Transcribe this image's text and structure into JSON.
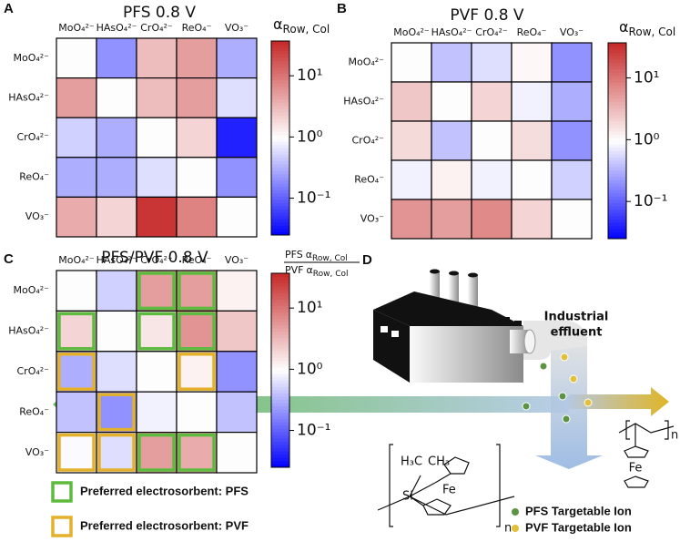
{
  "chart_data": [
    {
      "type": "heatmap",
      "panel": "A",
      "title": "PFS 0.8 V",
      "rows": [
        "MoO₄²⁻",
        "HAsO₄²⁻",
        "CrO₄²⁻",
        "ReO₄⁻",
        "VO₃⁻"
      ],
      "columns": [
        "MoO₄²⁻",
        "HAsO₄²⁻",
        "CrO₄²⁻",
        "ReO₄⁻",
        "VO₃⁻"
      ],
      "values": [
        [
          1,
          0.2,
          3,
          5,
          0.3
        ],
        [
          5,
          1,
          3,
          5,
          0.6
        ],
        [
          0.5,
          0.3,
          1,
          2,
          0.04
        ],
        [
          0.3,
          0.3,
          0.6,
          1,
          0.2
        ],
        [
          4,
          2,
          30,
          8,
          1
        ]
      ],
      "colorbar_label": [
        {
          "symbol": "α",
          "subscript": "Row, Col"
        }
      ],
      "scale": "log",
      "zlim": [
        0.025,
        37
      ],
      "zticks": [
        {
          "value": 10,
          "label": "10¹"
        },
        {
          "value": 1,
          "label": "10⁰"
        },
        {
          "value": 0.1,
          "label": "10⁻¹"
        }
      ],
      "colormap": [
        "#0000ff",
        "#ffffff",
        "#c62828"
      ]
    },
    {
      "type": "heatmap",
      "panel": "B",
      "title": "PVF 0.8 V",
      "rows": [
        "MoO₄²⁻",
        "HAsO₄²⁻",
        "CrO₄²⁻",
        "ReO₄⁻",
        "VO₃⁻"
      ],
      "columns": [
        "MoO₄²⁻",
        "HAsO₄²⁻",
        "CrO₄²⁻",
        "ReO₄⁻",
        "VO₃⁻"
      ],
      "values": [
        [
          1,
          0.4,
          0.6,
          1.1,
          0.2
        ],
        [
          2.5,
          1,
          2,
          0.8,
          0.3
        ],
        [
          1.8,
          0.4,
          1,
          1.7,
          0.2
        ],
        [
          0.8,
          1.2,
          0.8,
          1,
          0.5
        ],
        [
          6,
          5,
          7,
          2,
          1
        ]
      ],
      "colorbar_label": [
        {
          "symbol": "α",
          "subscript": "Row, Col"
        }
      ],
      "scale": "log",
      "zlim": [
        0.025,
        37
      ],
      "zticks": [
        {
          "value": 10,
          "label": "10¹"
        },
        {
          "value": 1,
          "label": "10⁰"
        },
        {
          "value": 0.1,
          "label": "10⁻¹"
        }
      ],
      "colormap": [
        "#0000ff",
        "#ffffff",
        "#c62828"
      ]
    },
    {
      "type": "heatmap",
      "panel": "C",
      "title": "PFS/PVF 0.8 V",
      "rows": [
        "MoO₄²⁻",
        "HAsO₄²⁻",
        "CrO₄²⁻",
        "ReO₄⁻",
        "VO₃⁻"
      ],
      "columns": [
        "MoO₄²⁻",
        "HAsO₄²⁻",
        "CrO₄²⁻",
        "ReO₄⁻",
        "VO₃⁻"
      ],
      "values": [
        [
          1,
          0.5,
          5,
          5,
          1.2
        ],
        [
          2,
          1,
          1.5,
          6,
          2.5
        ],
        [
          0.3,
          0.6,
          1,
          1.2,
          0.2
        ],
        [
          0.4,
          0.2,
          0.8,
          1,
          0.4
        ],
        [
          0.9,
          0.6,
          5,
          4,
          1
        ]
      ],
      "colorbar_label": [
        {
          "prefix": "PFS",
          "symbol": "α",
          "subscript": "Row, Col"
        },
        {
          "prefix": "PVF",
          "symbol": "α",
          "subscript": "Row, Col"
        }
      ],
      "scale": "log",
      "zlim": [
        0.025,
        37
      ],
      "zticks": [
        {
          "value": 10,
          "label": "10¹"
        },
        {
          "value": 1,
          "label": "10⁰"
        },
        {
          "value": 0.1,
          "label": "10⁻¹"
        }
      ],
      "colormap": [
        "#0000ff",
        "#ffffff",
        "#c62828"
      ],
      "highlights": [
        {
          "name": "Preferred electrosorbent: PFS",
          "color": "#5dbb3f",
          "cells": [
            [
              0,
              2
            ],
            [
              0,
              3
            ],
            [
              1,
              0
            ],
            [
              1,
              2
            ],
            [
              1,
              3
            ],
            [
              4,
              2
            ],
            [
              4,
              3
            ]
          ]
        },
        {
          "name": "Preferred electrosorbent: PVF",
          "color": "#e3b12a",
          "cells": [
            [
              2,
              0
            ],
            [
              2,
              3
            ],
            [
              3,
              1
            ],
            [
              4,
              0
            ],
            [
              4,
              1
            ]
          ]
        }
      ]
    }
  ],
  "diagram": {
    "panel": "D",
    "effluent": [
      "Industrial",
      "effluent"
    ],
    "legend": [
      {
        "name": "PFS Targetable Ion",
        "color": "#5d9443"
      },
      {
        "name": "PVF Targetable Ion",
        "color": "#e2c03a"
      }
    ],
    "pfs_structure": {
      "methyl_left": "H₃C",
      "methyl_right": "CH₃",
      "silicon": "Si",
      "iron": "Fe",
      "repeat": "n"
    },
    "pvf_structure": {
      "iron": "Fe",
      "repeat": "n"
    }
  }
}
